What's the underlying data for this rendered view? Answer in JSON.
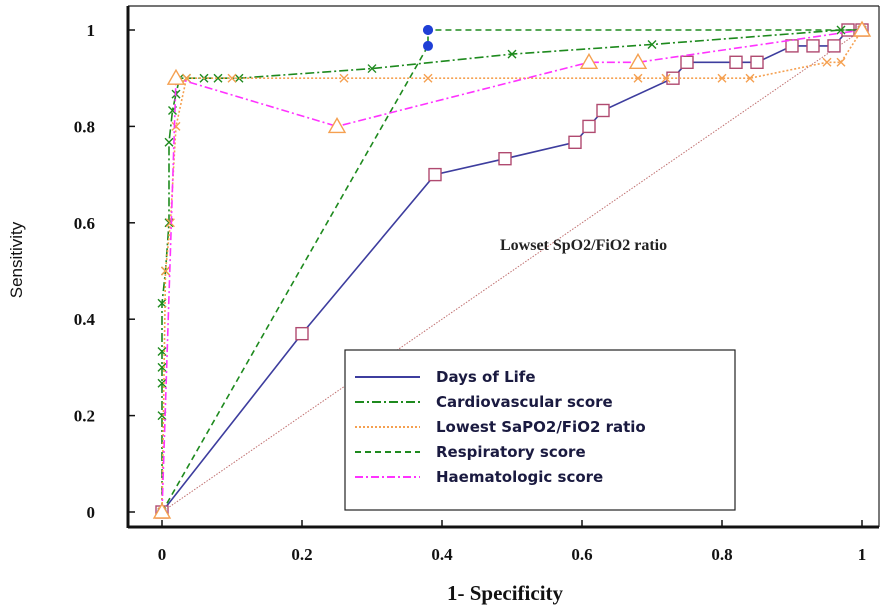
{
  "chart_data": {
    "type": "line",
    "title": "",
    "xlabel": "1- Specificity",
    "ylabel": "Sensitivity",
    "annotation": "Lowset SpO2/FiO2 ratio",
    "xlim": [
      0,
      1
    ],
    "ylim": [
      0,
      1
    ],
    "xticks": [
      "0",
      "0.2",
      "0.4",
      "0.6",
      "0.8",
      "1"
    ],
    "yticks": [
      "0",
      "0.2",
      "0.4",
      "0.6",
      "0.8",
      "1"
    ],
    "grid": false,
    "legend_position": "bottom-right",
    "diagonal": {
      "x": [
        0,
        1
      ],
      "y": [
        0,
        1
      ],
      "color": "#c07070"
    },
    "legend_order": [
      0,
      1,
      2,
      3,
      4
    ],
    "series": [
      {
        "name": "Days of Life",
        "color": "#3d3d9e",
        "dash": "",
        "marker": "square",
        "x": [
          0,
          0.2,
          0.39,
          0.49,
          0.59,
          0.61,
          0.63,
          0.73,
          0.75,
          0.82,
          0.85,
          0.9,
          0.93,
          0.96,
          0.98,
          1
        ],
        "y": [
          0,
          0.37,
          0.7,
          0.733,
          0.767,
          0.8,
          0.833,
          0.9,
          0.933,
          0.933,
          0.933,
          0.967,
          0.967,
          0.967,
          1,
          1
        ]
      },
      {
        "name": "Cardiovascular score",
        "color": "#1e8a1e",
        "dash": "9,3,2,3",
        "marker": "cross",
        "x": [
          0,
          0.0,
          0.0,
          0.0,
          0.0,
          0.0,
          0.005,
          0.01,
          0.01,
          0.015,
          0.02,
          0.025,
          0.035,
          0.06,
          0.08,
          0.11,
          0.3,
          0.5,
          0.7,
          0.97,
          1
        ],
        "y": [
          0,
          0.2,
          0.267,
          0.3,
          0.333,
          0.433,
          0.5,
          0.6,
          0.767,
          0.833,
          0.867,
          0.9,
          0.9,
          0.9,
          0.9,
          0.9,
          0.92,
          0.95,
          0.97,
          1,
          1
        ]
      },
      {
        "name": "Lowest SaPO2/FiO2 ratio",
        "color": "#f5a050",
        "dash": "2,2",
        "marker": "cross",
        "x": [
          0,
          0.005,
          0.012,
          0.02,
          0.035,
          0.1,
          0.26,
          0.38,
          0.68,
          0.72,
          0.8,
          0.84,
          0.95,
          0.97,
          1
        ],
        "y": [
          0,
          0.5,
          0.6,
          0.8,
          0.9,
          0.9,
          0.9,
          0.9,
          0.9,
          0.9,
          0.9,
          0.9,
          0.933,
          0.933,
          1
        ]
      },
      {
        "name": "Respiratory score",
        "color": "#1e8a1e",
        "dash": "6,4",
        "marker": "dot",
        "x": [
          0,
          0.38,
          0.38,
          0.38,
          1
        ],
        "y": [
          0,
          0.967,
          1,
          1,
          1
        ]
      },
      {
        "name": "Haematologic score",
        "color": "#ff33ff",
        "dash": "8,3,2,3",
        "marker": "triangle",
        "x": [
          0,
          0.02,
          0.25,
          0.61,
          0.68,
          1
        ],
        "y": [
          0,
          0.9,
          0.8,
          0.933,
          0.933,
          1
        ]
      }
    ]
  }
}
